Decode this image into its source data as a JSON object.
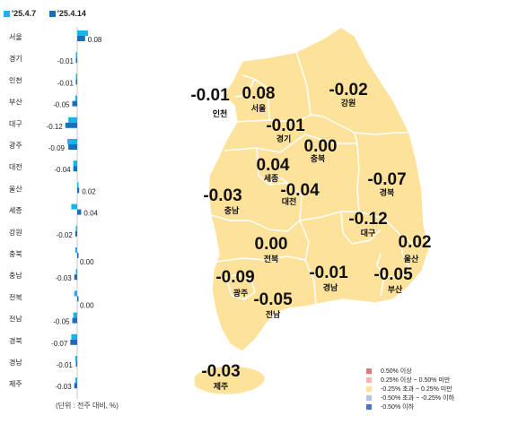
{
  "legend": {
    "series": [
      {
        "name": "'25.4.7",
        "color": "#1cb3ea"
      },
      {
        "name": "'25.4.14",
        "color": "#1a6fb8"
      }
    ]
  },
  "unit_note": "(단위 : 전주 대비, %)",
  "chart_data": {
    "type": "bar",
    "orientation": "horizontal",
    "categories": [
      "서울",
      "경기",
      "인천",
      "부산",
      "대구",
      "광주",
      "대전",
      "울산",
      "세종",
      "강원",
      "충북",
      "충남",
      "전북",
      "전남",
      "경북",
      "경남",
      "제주"
    ],
    "series": [
      {
        "name": "'25.4.7",
        "values": [
          0.11,
          -0.01,
          -0.01,
          -0.02,
          -0.09,
          -0.1,
          -0.04,
          0.0,
          -0.06,
          -0.01,
          -0.02,
          -0.01,
          -0.03,
          -0.04,
          -0.06,
          -0.02,
          -0.02
        ]
      },
      {
        "name": "'25.4.14",
        "values": [
          0.08,
          -0.01,
          -0.01,
          -0.05,
          -0.12,
          -0.09,
          -0.04,
          0.02,
          0.04,
          -0.02,
          0.0,
          -0.03,
          0.0,
          -0.05,
          -0.07,
          -0.01,
          -0.03
        ]
      }
    ],
    "data_labels": [
      "0.08",
      "-0.01",
      "-0.01",
      "-0.05",
      "-0.12",
      "-0.09",
      "-0.04",
      "0.02",
      "0.04",
      "-0.02",
      "0.00",
      "-0.03",
      "0.00",
      "-0.05",
      "-0.07",
      "-0.01",
      "-0.03"
    ]
  },
  "map": {
    "regions": [
      {
        "id": "incheon",
        "name": "인천",
        "value": "-0.01"
      },
      {
        "id": "seoul",
        "name": "서울",
        "value": "0.08"
      },
      {
        "id": "gyeonggi",
        "name": "경기",
        "value": "-0.01"
      },
      {
        "id": "gangwon",
        "name": "강원",
        "value": "-0.02"
      },
      {
        "id": "chungbuk",
        "name": "충북",
        "value": "0.00"
      },
      {
        "id": "sejong",
        "name": "세종",
        "value": "0.04"
      },
      {
        "id": "chungnam",
        "name": "충남",
        "value": "-0.03"
      },
      {
        "id": "daejeon",
        "name": "대전",
        "value": "-0.04"
      },
      {
        "id": "gyeongbuk",
        "name": "경북",
        "value": "-0.07"
      },
      {
        "id": "daegu",
        "name": "대구",
        "value": "-0.12"
      },
      {
        "id": "jeonbuk",
        "name": "전북",
        "value": "0.00"
      },
      {
        "id": "ulsan",
        "name": "울산",
        "value": "0.02"
      },
      {
        "id": "gwangju",
        "name": "광주",
        "value": "-0.09"
      },
      {
        "id": "jeonnam",
        "name": "전남",
        "value": "-0.05"
      },
      {
        "id": "gyeongnam",
        "name": "경남",
        "value": "-0.01"
      },
      {
        "id": "busan",
        "name": "부산",
        "value": "-0.05"
      },
      {
        "id": "jeju",
        "name": "제주",
        "value": "-0.03"
      }
    ],
    "fill_color": "#fce29a",
    "legend": [
      {
        "label": "0.50% 이상",
        "color": "#e8737a"
      },
      {
        "label": "0.25% 이상 ~ 0.50% 미만",
        "color": "#f6b5b0"
      },
      {
        "label": "-0.25% 초과 ~ 0.25% 미만",
        "color": "#fce29a"
      },
      {
        "label": "-0.50% 초과 ~ -0.25% 이하",
        "color": "#b3c6ea"
      },
      {
        "label": "-0.50% 이하",
        "color": "#4f74c0"
      }
    ]
  }
}
